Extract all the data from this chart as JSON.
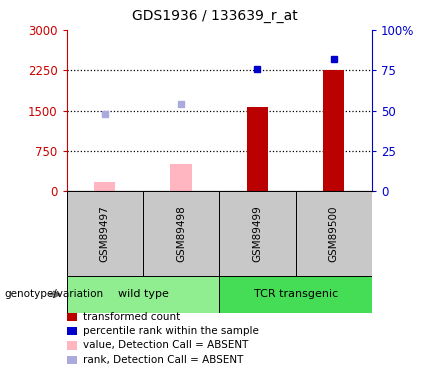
{
  "title": "GDS1936 / 133639_r_at",
  "samples": [
    "GSM89497",
    "GSM89498",
    "GSM89499",
    "GSM89500"
  ],
  "bar_values": [
    175,
    500,
    1570,
    2250
  ],
  "bar_absent": [
    true,
    true,
    false,
    false
  ],
  "rank_values": [
    48,
    54,
    76,
    82
  ],
  "rank_absent": [
    true,
    true,
    false,
    false
  ],
  "bar_color_present": "#BB0000",
  "bar_color_absent": "#FFB6C1",
  "rank_color_present": "#0000CC",
  "rank_color_absent": "#AAAADD",
  "ylim_left": [
    0,
    3000
  ],
  "ylim_right": [
    0,
    100
  ],
  "yticks_left": [
    0,
    750,
    1500,
    2250,
    3000
  ],
  "yticks_right": [
    0,
    25,
    50,
    75,
    100
  ],
  "ytick_labels_left": [
    "0",
    "750",
    "1500",
    "2250",
    "3000"
  ],
  "ytick_labels_right": [
    "0",
    "25",
    "50",
    "75",
    "100%"
  ],
  "dotted_lines": [
    750,
    1500,
    2250
  ],
  "left_color": "#CC0000",
  "right_color": "#0000CC",
  "sample_box_color": "#C8C8C8",
  "group_wt_color": "#90EE90",
  "group_tcr_color": "#44DD55",
  "group_label": "genotype/variation",
  "bar_width": 0.28,
  "legend": [
    {
      "label": "transformed count",
      "color": "#BB0000"
    },
    {
      "label": "percentile rank within the sample",
      "color": "#0000CC"
    },
    {
      "label": "value, Detection Call = ABSENT",
      "color": "#FFB6C1"
    },
    {
      "label": "rank, Detection Call = ABSENT",
      "color": "#AAAADD"
    }
  ]
}
